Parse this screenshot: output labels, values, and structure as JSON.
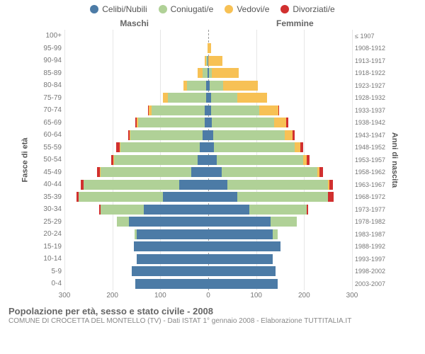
{
  "legend": [
    {
      "label": "Celibi/Nubili",
      "color": "#4c7ba6"
    },
    {
      "label": "Coniugati/e",
      "color": "#b0d197"
    },
    {
      "label": "Vedovi/e",
      "color": "#f7c155"
    },
    {
      "label": "Divorziati/e",
      "color": "#d1302f"
    }
  ],
  "gender_labels": {
    "male": "Maschi",
    "female": "Femmine"
  },
  "axis_titles": {
    "left": "Fasce di età",
    "right": "Anni di nascita"
  },
  "footer": {
    "title": "Popolazione per età, sesso e stato civile - 2008",
    "sub": "COMUNE DI CROCETTA DEL MONTELLO (TV) - Dati ISTAT 1° gennaio 2008 - Elaborazione TUTTITALIA.IT"
  },
  "x_max": 300,
  "x_ticks": [
    300,
    200,
    100,
    0,
    100,
    200,
    300
  ],
  "colors": {
    "single": "#4c7ba6",
    "married": "#b0d197",
    "widowed": "#f7c155",
    "divorced": "#d1302f",
    "grid": "#e6e6e6",
    "center": "#999999",
    "bg": "#ffffff"
  },
  "rows": [
    {
      "age": "100+",
      "birth": "≤ 1907",
      "m": [
        0,
        0,
        0,
        0
      ],
      "f": [
        0,
        0,
        0,
        0
      ]
    },
    {
      "age": "95-99",
      "birth": "1908-1912",
      "m": [
        0,
        0,
        2,
        0
      ],
      "f": [
        0,
        0,
        6,
        0
      ]
    },
    {
      "age": "90-94",
      "birth": "1913-1917",
      "m": [
        2,
        2,
        3,
        0
      ],
      "f": [
        0,
        0,
        30,
        0
      ]
    },
    {
      "age": "85-89",
      "birth": "1918-1922",
      "m": [
        2,
        10,
        10,
        0
      ],
      "f": [
        2,
        6,
        55,
        0
      ]
    },
    {
      "age": "80-84",
      "birth": "1923-1927",
      "m": [
        4,
        40,
        8,
        0
      ],
      "f": [
        3,
        28,
        72,
        0
      ]
    },
    {
      "age": "75-79",
      "birth": "1928-1932",
      "m": [
        4,
        80,
        10,
        0
      ],
      "f": [
        6,
        55,
        62,
        0
      ]
    },
    {
      "age": "70-74",
      "birth": "1933-1937",
      "m": [
        8,
        110,
        6,
        2
      ],
      "f": [
        6,
        100,
        40,
        2
      ]
    },
    {
      "age": "65-69",
      "birth": "1938-1942",
      "m": [
        8,
        138,
        4,
        2
      ],
      "f": [
        8,
        130,
        25,
        4
      ]
    },
    {
      "age": "60-64",
      "birth": "1943-1947",
      "m": [
        12,
        150,
        2,
        3
      ],
      "f": [
        10,
        150,
        16,
        5
      ]
    },
    {
      "age": "55-59",
      "birth": "1948-1952",
      "m": [
        18,
        165,
        2,
        7
      ],
      "f": [
        12,
        168,
        12,
        6
      ]
    },
    {
      "age": "50-54",
      "birth": "1953-1957",
      "m": [
        22,
        175,
        1,
        5
      ],
      "f": [
        18,
        180,
        8,
        6
      ]
    },
    {
      "age": "45-49",
      "birth": "1958-1962",
      "m": [
        35,
        190,
        1,
        6
      ],
      "f": [
        28,
        200,
        4,
        8
      ]
    },
    {
      "age": "40-44",
      "birth": "1963-1967",
      "m": [
        60,
        200,
        0,
        6
      ],
      "f": [
        40,
        210,
        2,
        8
      ]
    },
    {
      "age": "35-39",
      "birth": "1968-1972",
      "m": [
        95,
        175,
        0,
        5
      ],
      "f": [
        60,
        190,
        0,
        12
      ]
    },
    {
      "age": "30-34",
      "birth": "1973-1977",
      "m": [
        135,
        90,
        0,
        2
      ],
      "f": [
        85,
        120,
        0,
        4
      ]
    },
    {
      "age": "25-29",
      "birth": "1978-1982",
      "m": [
        165,
        25,
        0,
        0
      ],
      "f": [
        130,
        55,
        0,
        0
      ]
    },
    {
      "age": "20-24",
      "birth": "1983-1987",
      "m": [
        150,
        3,
        0,
        0
      ],
      "f": [
        135,
        10,
        0,
        0
      ]
    },
    {
      "age": "15-19",
      "birth": "1988-1992",
      "m": [
        155,
        0,
        0,
        0
      ],
      "f": [
        150,
        0,
        0,
        0
      ]
    },
    {
      "age": "10-14",
      "birth": "1993-1997",
      "m": [
        150,
        0,
        0,
        0
      ],
      "f": [
        135,
        0,
        0,
        0
      ]
    },
    {
      "age": "5-9",
      "birth": "1998-2002",
      "m": [
        160,
        0,
        0,
        0
      ],
      "f": [
        140,
        0,
        0,
        0
      ]
    },
    {
      "age": "0-4",
      "birth": "2003-2007",
      "m": [
        152,
        0,
        0,
        0
      ],
      "f": [
        145,
        0,
        0,
        0
      ]
    }
  ]
}
